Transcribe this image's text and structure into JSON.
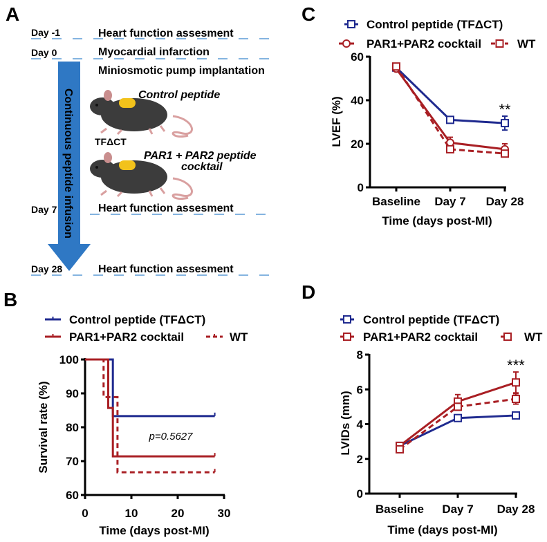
{
  "panels": {
    "a": "A",
    "b": "B",
    "c": "C",
    "d": "D"
  },
  "diagram": {
    "timepoints": [
      {
        "day": "Day -1",
        "event": "Heart function assesment"
      },
      {
        "day": "Day 0",
        "event": "Myocardial infarction"
      },
      {
        "day": "Day 7",
        "event": "Heart function assesment"
      },
      {
        "day": "Day 28",
        "event": "Heart function assesment"
      }
    ],
    "procedure": "Miniosmotic pump implantation",
    "arrow_label": "Continuous peptide infusion",
    "group1_label": "Control peptide",
    "group1_sub": "TFΔCT",
    "group2_line1": "PAR1 + PAR2 peptide",
    "group2_line2": "cocktail",
    "arrow_color": "#2f78c4",
    "line_color": "#5b9bd5"
  },
  "chart_data": [
    {
      "panel": "B",
      "type": "line",
      "step": true,
      "xlabel": "Time (days post-MI)",
      "ylabel": "Survival rate (%)",
      "xlim": [
        0,
        30
      ],
      "ylim": [
        60,
        100
      ],
      "xticks": [
        "0",
        "10",
        "20",
        "30"
      ],
      "yticks": [
        "60",
        "70",
        "80",
        "90",
        "100"
      ],
      "annotation": "p=0.5627",
      "legend": "top",
      "series": [
        {
          "name": "Control peptide (TFΔCT)",
          "color": "#1f2a8f",
          "dashed": false,
          "x": [
            0,
            6,
            28
          ],
          "y": [
            100,
            83.3,
            83.3
          ]
        },
        {
          "name": "PAR1+PAR2 cocktail",
          "color": "#a91f24",
          "dashed": false,
          "x": [
            0,
            5,
            6,
            28
          ],
          "y": [
            100,
            85.7,
            71.4,
            71.4
          ]
        },
        {
          "name": "WT",
          "color": "#a91f24",
          "dashed": true,
          "x": [
            0,
            4,
            7,
            28
          ],
          "y": [
            100,
            88.9,
            66.7,
            66.7
          ]
        }
      ]
    },
    {
      "panel": "C",
      "type": "line",
      "xlabel": "Time (days post-MI)",
      "ylabel": "LVEF (%)",
      "categories": [
        "Baseline",
        "Day 7",
        "Day 28"
      ],
      "ylim": [
        0,
        60
      ],
      "yticks": [
        "0",
        "20",
        "40",
        "60"
      ],
      "annotation": "**",
      "legend": "top",
      "series": [
        {
          "name": "Control peptide (TFΔCT)",
          "color": "#1f2a8f",
          "marker": "square",
          "dashed": false,
          "values": [
            55,
            31,
            29.5
          ],
          "errors": [
            1,
            1,
            3.2
          ]
        },
        {
          "name": "PAR1+PAR2 cocktail",
          "color": "#a91f24",
          "marker": "circle",
          "dashed": false,
          "values": [
            54.5,
            20.5,
            17.5
          ],
          "errors": [
            1,
            2.5,
            2.5
          ]
        },
        {
          "name": "WT",
          "color": "#a91f24",
          "marker": "square",
          "dashed": true,
          "values": [
            55.5,
            17.5,
            15.5
          ],
          "errors": [
            1,
            1.5,
            1
          ]
        }
      ]
    },
    {
      "panel": "D",
      "type": "line",
      "xlabel": "Time (days post-MI)",
      "ylabel": "LVIDs (mm)",
      "categories": [
        "Baseline",
        "Day 7",
        "Day 28"
      ],
      "ylim": [
        0,
        8
      ],
      "yticks": [
        "0",
        "2",
        "4",
        "6",
        "8"
      ],
      "annotation": "***",
      "legend": "top",
      "series": [
        {
          "name": "Control peptide (TFΔCT)",
          "color": "#1f2a8f",
          "marker": "square",
          "dashed": false,
          "values": [
            2.75,
            4.35,
            4.5
          ],
          "errors": [
            0.05,
            0.08,
            0.08
          ]
        },
        {
          "name": "PAR1+PAR2 cocktail",
          "color": "#a91f24",
          "marker": "square",
          "dashed": false,
          "values": [
            2.75,
            5.3,
            6.4
          ],
          "errors": [
            0.1,
            0.4,
            0.6
          ]
        },
        {
          "name": "WT",
          "color": "#a91f24",
          "marker": "square",
          "dashed": true,
          "values": [
            2.55,
            5.0,
            5.45
          ],
          "errors": [
            0.1,
            0.2,
            0.3
          ]
        }
      ]
    }
  ]
}
